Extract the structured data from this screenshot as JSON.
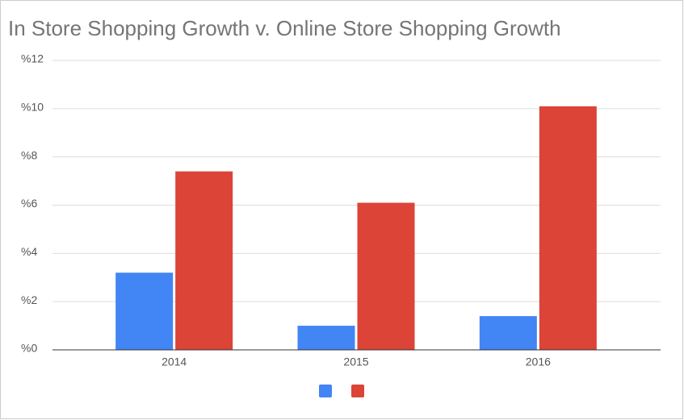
{
  "chart_data": {
    "type": "grouped_bar",
    "title": "In Store Shopping Growth v. Online Store Shopping Growth",
    "categories": [
      "2014",
      "2015",
      "2016"
    ],
    "series": [
      {
        "color": "#4285f4",
        "values": [
          3.2,
          1.0,
          1.4
        ]
      },
      {
        "color": "#db4437",
        "values": [
          7.4,
          6.1,
          10.1
        ]
      }
    ],
    "ylim": [
      0,
      12
    ],
    "yticks": [
      {
        "value": 0,
        "label": "%0"
      },
      {
        "value": 2,
        "label": "%2"
      },
      {
        "value": 4,
        "label": "%4"
      },
      {
        "value": 6,
        "label": "%6"
      },
      {
        "value": 8,
        "label": "%8"
      },
      {
        "value": 10,
        "label": "%10"
      },
      {
        "value": 12,
        "label": "%12"
      }
    ],
    "grid": true,
    "legend": "bottom"
  }
}
